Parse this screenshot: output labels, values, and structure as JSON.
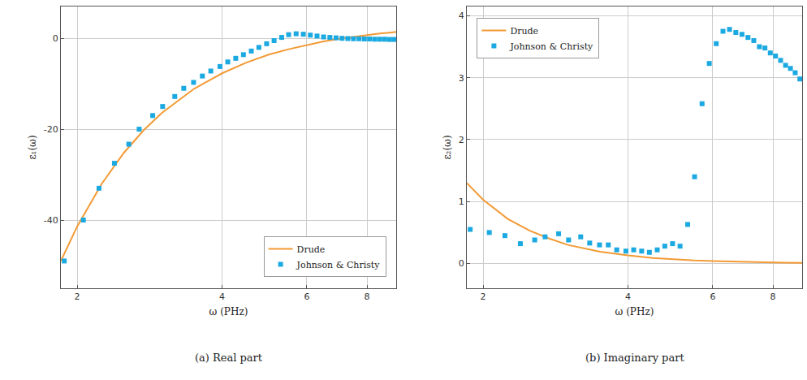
{
  "chart_data": [
    {
      "type": "line",
      "title": "(a) Real part",
      "x_label": "ω (PHz)",
      "y_label": "ε₁(ω)",
      "log": "x",
      "grid": true,
      "legend": "bottom right",
      "xlim": [
        1.85,
        9.2
      ],
      "xticks": [
        2,
        4,
        6,
        8
      ],
      "ylim": [
        -55,
        7
      ],
      "yticks": [
        -40,
        -20,
        0
      ],
      "series": [
        {
          "name": "Drude",
          "type": "line",
          "color": "#f39a35",
          "line_style": "solid",
          "x": [
            1.85,
            2.0,
            2.25,
            2.5,
            2.75,
            3.0,
            3.5,
            4.0,
            4.5,
            5.0,
            5.5,
            6.0,
            6.5,
            7.0,
            7.5,
            8.0,
            8.5,
            9.0,
            9.2
          ],
          "values": [
            -49.0,
            -41.4,
            -32.0,
            -25.2,
            -20.2,
            -16.4,
            -11.1,
            -7.7,
            -5.3,
            -3.6,
            -2.4,
            -1.45,
            -0.7,
            -0.1,
            0.35,
            0.7,
            1.05,
            1.3,
            1.4
          ]
        },
        {
          "name": "Johnson & Christy",
          "type": "scatter",
          "color": "#1ba9e1",
          "marker": "square",
          "x": [
            1.88,
            2.06,
            2.22,
            2.39,
            2.56,
            2.69,
            2.87,
            3.01,
            3.19,
            3.33,
            3.49,
            3.64,
            3.79,
            3.96,
            4.11,
            4.27,
            4.43,
            4.6,
            4.77,
            4.95,
            5.13,
            5.32,
            5.5,
            5.7,
            5.9,
            6.1,
            6.3,
            6.5,
            6.7,
            6.9,
            7.1,
            7.3,
            7.5,
            7.7,
            7.9,
            8.1,
            8.3,
            8.5,
            8.7,
            8.9,
            9.1
          ],
          "values": [
            -49,
            -40,
            -33,
            -27.5,
            -23.3,
            -20,
            -17,
            -15,
            -12.8,
            -11,
            -9.7,
            -8.3,
            -7.2,
            -6.2,
            -5.2,
            -4.4,
            -3.6,
            -2.8,
            -2.0,
            -1.2,
            -0.5,
            0.2,
            0.8,
            1.0,
            0.9,
            0.7,
            0.5,
            0.3,
            0.2,
            0.1,
            0.0,
            -0.05,
            -0.1,
            -0.1,
            -0.15,
            -0.15,
            -0.2,
            -0.2,
            -0.2,
            -0.25,
            -0.25
          ]
        }
      ]
    },
    {
      "type": "line",
      "title": "(b) Imaginary part",
      "x_label": "ω (PHz)",
      "y_label": "ε₂(ω)",
      "log": "x",
      "grid": true,
      "legend": "top left",
      "xlim": [
        1.85,
        9.2
      ],
      "xticks": [
        2,
        4,
        6,
        8
      ],
      "ylim": [
        -0.4,
        4.15
      ],
      "yticks": [
        0,
        1,
        2,
        3,
        4
      ],
      "series": [
        {
          "name": "Drude",
          "type": "line",
          "color": "#f39a35",
          "line_style": "solid",
          "x": [
            1.85,
            2.0,
            2.25,
            2.5,
            2.75,
            3.0,
            3.5,
            4.0,
            4.5,
            5.0,
            5.5,
            6.0,
            6.5,
            7.0,
            7.5,
            8.0,
            8.5,
            9.0,
            9.2
          ],
          "values": [
            1.3,
            1.03,
            0.72,
            0.53,
            0.4,
            0.3,
            0.19,
            0.13,
            0.09,
            0.066,
            0.049,
            0.038,
            0.03,
            0.024,
            0.02,
            0.016,
            0.013,
            0.011,
            0.01
          ]
        },
        {
          "name": "Johnson & Christy",
          "type": "scatter",
          "color": "#1ba9e1",
          "marker": "square",
          "x": [
            1.88,
            2.06,
            2.22,
            2.39,
            2.56,
            2.69,
            2.87,
            3.01,
            3.19,
            3.33,
            3.49,
            3.64,
            3.79,
            3.96,
            4.11,
            4.27,
            4.43,
            4.6,
            4.77,
            4.95,
            5.13,
            5.32,
            5.5,
            5.7,
            5.9,
            6.1,
            6.3,
            6.5,
            6.7,
            6.9,
            7.1,
            7.3,
            7.5,
            7.7,
            7.9,
            8.1,
            8.3,
            8.5,
            8.7,
            8.9,
            9.1
          ],
          "values": [
            0.55,
            0.5,
            0.45,
            0.32,
            0.38,
            0.43,
            0.48,
            0.38,
            0.43,
            0.33,
            0.3,
            0.3,
            0.22,
            0.2,
            0.22,
            0.2,
            0.18,
            0.22,
            0.28,
            0.32,
            0.28,
            0.63,
            1.4,
            2.58,
            3.23,
            3.55,
            3.75,
            3.78,
            3.73,
            3.7,
            3.65,
            3.6,
            3.5,
            3.48,
            3.4,
            3.35,
            3.28,
            3.2,
            3.15,
            3.08,
            2.98
          ]
        }
      ]
    }
  ]
}
